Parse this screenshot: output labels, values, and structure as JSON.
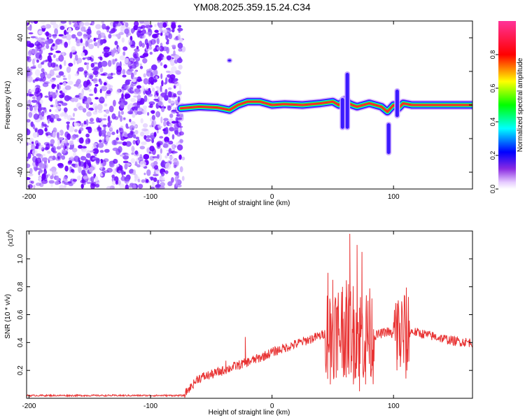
{
  "title": "YM08.2025.359.15.24.C34",
  "chart_data": [
    {
      "type": "heatmap",
      "xlabel": "Height of straight line (km)",
      "ylabel": "Frequency (Hz)",
      "xlim": [
        -202,
        165
      ],
      "ylim": [
        -50,
        50
      ],
      "x_ticks": [
        -200,
        -100,
        0,
        100
      ],
      "y_ticks": [
        -40,
        -20,
        0,
        20,
        40
      ],
      "colorbar": {
        "label": "Normalized spectral amplitude",
        "range": [
          0,
          1
        ],
        "ticks": [
          "0.0",
          "0.2",
          "0.4",
          "0.6",
          "0.8"
        ],
        "colors": [
          "#e6ccff",
          "#6a00ff",
          "#0000ff",
          "#00ffff",
          "#00ff00",
          "#ffff00",
          "#ff0000",
          "#ff3399"
        ]
      },
      "noise_region_x": [
        -202,
        -73
      ],
      "ridge": {
        "x": [
          -75,
          -60,
          -45,
          -35,
          -28,
          -20,
          -10,
          0,
          10,
          25,
          40,
          50,
          55,
          60,
          63,
          66,
          70,
          80,
          90,
          95,
          100,
          104,
          108,
          115,
          125,
          140,
          165
        ],
        "y": [
          -2,
          -1,
          -1.5,
          -3,
          0,
          2,
          2,
          0,
          0.5,
          0,
          1,
          2,
          0,
          3,
          1,
          0,
          -1,
          1,
          -1,
          -4,
          0,
          -2,
          1,
          0,
          0,
          0,
          0
        ]
      },
      "features": [
        {
          "x": 62,
          "y": [
            -15,
            20
          ]
        },
        {
          "x": 58,
          "y": [
            -15,
            5
          ]
        },
        {
          "x": 96,
          "y": [
            -30,
            -10
          ]
        },
        {
          "x": 103,
          "y": [
            -8,
            10
          ]
        },
        {
          "x": -35,
          "y": [
            25,
            28
          ]
        }
      ]
    },
    {
      "type": "line",
      "xlabel": "Height of straight line (km)",
      "ylabel": "SNR (10 * v/v)",
      "y_multiplier": "(x10",
      "y_multiplier_exp": "4",
      "xlim": [
        -202,
        165
      ],
      "ylim": [
        0,
        1.2
      ],
      "x_ticks": [
        -200,
        -100,
        0,
        100
      ],
      "y_ticks": [
        "0.2",
        "0.4",
        "0.6",
        "0.8",
        "1.0"
      ],
      "color": "#e83232",
      "baseline": {
        "x": [
          -202,
          -72
        ],
        "y": 0.02
      },
      "trend": {
        "x": [
          -62,
          -50,
          -30,
          -10,
          0,
          20,
          40,
          45,
          55,
          65,
          75,
          85,
          95,
          100,
          110,
          115,
          130,
          150,
          165
        ],
        "y": [
          0.14,
          0.17,
          0.23,
          0.29,
          0.33,
          0.39,
          0.45,
          0.47,
          0.5,
          0.5,
          0.45,
          0.45,
          0.48,
          0.45,
          0.45,
          0.48,
          0.45,
          0.41,
          0.4
        ]
      },
      "spikes": [
        {
          "x": 46,
          "y": 0.9
        },
        {
          "x": 48,
          "y": 0.1
        },
        {
          "x": 50,
          "y": 0.85
        },
        {
          "x": 54,
          "y": 0.2
        },
        {
          "x": 58,
          "y": 0.8
        },
        {
          "x": 61,
          "y": 0.15
        },
        {
          "x": 64,
          "y": 1.18
        },
        {
          "x": 67,
          "y": 0.1
        },
        {
          "x": 70,
          "y": 1.1
        },
        {
          "x": 72,
          "y": 0.05
        },
        {
          "x": 74,
          "y": 1.05
        },
        {
          "x": 77,
          "y": 0.1
        },
        {
          "x": 79,
          "y": 0.7
        },
        {
          "x": 82,
          "y": 0.2
        },
        {
          "x": 103,
          "y": 0.68
        },
        {
          "x": 106,
          "y": 0.3
        },
        {
          "x": 109,
          "y": 0.7
        },
        {
          "x": 111,
          "y": 0.2
        },
        {
          "x": -22,
          "y": 0.44
        },
        {
          "x": -38,
          "y": 0.27
        }
      ]
    }
  ]
}
